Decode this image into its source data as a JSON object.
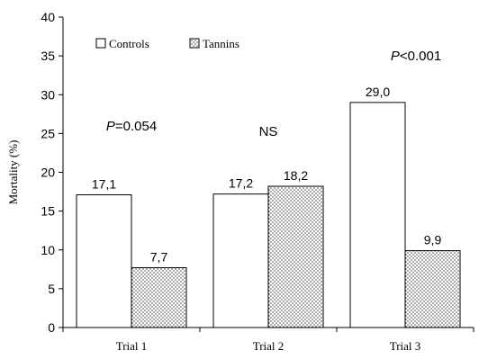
{
  "chart_data": {
    "type": "bar",
    "title": "",
    "xlabel": "",
    "ylabel": "Mortality (%)",
    "categories": [
      "Trial 1",
      "Trial 2",
      "Trial 3"
    ],
    "series": [
      {
        "name": "Controls",
        "values": [
          17.1,
          17.2,
          29.0
        ],
        "value_labels": [
          "17,1",
          "17,2",
          "29,0"
        ],
        "fill": "#ffffff",
        "pattern": "none"
      },
      {
        "name": "Tannins",
        "values": [
          7.7,
          18.2,
          9.9
        ],
        "value_labels": [
          "7,7",
          "18,2",
          "9,9"
        ],
        "fill": "#ffffff",
        "pattern": "dots"
      }
    ],
    "ylim": [
      0,
      40
    ],
    "yticks": [
      0,
      5,
      10,
      15,
      20,
      25,
      30,
      35,
      40
    ],
    "ytick_labels": [
      "0",
      "5",
      "10",
      "15",
      "20",
      "25",
      "30",
      "35",
      "40"
    ],
    "grid": false,
    "legend_position": "top-left",
    "annotations": [
      {
        "category": "Trial 1",
        "prefix": "P",
        "text": "=0.054"
      },
      {
        "category": "Trial 2",
        "prefix": "",
        "text": "NS"
      },
      {
        "category": "Trial 3",
        "prefix": "P",
        "text": "<0.001"
      }
    ],
    "colors": {
      "axis": "#000000",
      "bar_stroke": "#000000",
      "pattern_dot": "#000000",
      "background": "#ffffff"
    }
  }
}
